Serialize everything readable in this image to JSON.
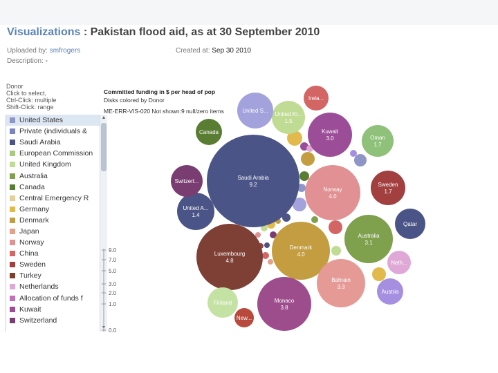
{
  "header": {
    "title_prefix": "Visualizations",
    "title_rest": " : Pakistan flood aid, as at 30 September 2010"
  },
  "meta": {
    "uploaded_label": "Uploaded by:",
    "uploaded_value": "smfrogers",
    "created_label": "Created at:",
    "created_value": "Sep 30 2010",
    "description_label": "Description:",
    "description_value": "-"
  },
  "filter_panel": {
    "title": "Donor",
    "help_lines": [
      "Click to select,",
      "Ctrl-Click: multiple",
      "Shift-Click: range"
    ],
    "items": [
      {
        "label": "United States",
        "color": "#8e96c8"
      },
      {
        "label": "Private (individuals &",
        "color": "#7b83c0"
      },
      {
        "label": "Saudi Arabia",
        "color": "#4b5487"
      },
      {
        "label": "European Commission",
        "color": "#a9cb7f"
      },
      {
        "label": "United Kingdom",
        "color": "#c0db93"
      },
      {
        "label": "Australia",
        "color": "#7fa04d"
      },
      {
        "label": "Canada",
        "color": "#5a7d34"
      },
      {
        "label": "Central Emergency R",
        "color": "#e4cf98"
      },
      {
        "label": "Germany",
        "color": "#e2b94c"
      },
      {
        "label": "Denmark",
        "color": "#c39d3f"
      },
      {
        "label": "Japan",
        "color": "#e3a188"
      },
      {
        "label": "Norway",
        "color": "#e19193"
      },
      {
        "label": "China",
        "color": "#d46565"
      },
      {
        "label": "Sweden",
        "color": "#a24040"
      },
      {
        "label": "Turkey",
        "color": "#7e3f2d"
      },
      {
        "label": "Netherlands",
        "color": "#e0a8d6"
      },
      {
        "label": "Allocation of funds f",
        "color": "#c270b8"
      },
      {
        "label": "Kuwait",
        "color": "#9b4e97"
      },
      {
        "label": "Switzerland",
        "color": "#7a3d72"
      }
    ]
  },
  "chart_info": {
    "title": "Committed funding in $ per head of pop",
    "subtitle": "Disks colored by Donor",
    "note": "ME-ERR-VIS-020 Not shown:9 null/zero items"
  },
  "legend_scale": {
    "ticks": [
      "9.0",
      "7.0",
      "5.0",
      "3.0",
      "2.0",
      "1.0",
      "0.0"
    ]
  },
  "chart_data": {
    "type": "bubble",
    "title": "Committed funding in $ per head of pop",
    "size_scale_ticks": [
      9.0,
      7.0,
      5.0,
      3.0,
      2.0,
      1.0,
      0.0
    ],
    "bubbles": [
      {
        "label": "Saudi Arabia",
        "value": 9.2,
        "color": "#4b5487",
        "text": "Saudi Arabia\n9.2"
      },
      {
        "label": "Luxembourg",
        "value": 4.8,
        "color": "#7e3f35",
        "text": "Luxembourg\n4.8"
      },
      {
        "label": "Denmark",
        "value": 4.0,
        "color": "#c39d3f",
        "text": "Denmark\n4.0"
      },
      {
        "label": "Norway",
        "value": 4.0,
        "color": "#e19193",
        "text": "Norway\n4.0"
      },
      {
        "label": "Monaco",
        "value": 3.8,
        "color": "#9d4c8c",
        "text": "Monaco\n3.8"
      },
      {
        "label": "Bahrain",
        "value": 3.3,
        "color": "#e69a96",
        "text": "Bahrain\n3.3"
      },
      {
        "label": "Australia",
        "value": 3.1,
        "color": "#7fa04d",
        "text": "Australia\n3.1"
      },
      {
        "label": "Kuwait",
        "value": 3.0,
        "color": "#9b4e97",
        "text": "Kuwait\n3.0"
      },
      {
        "label": "Oman",
        "value": 1.7,
        "color": "#8fc17a",
        "text": "Oman\n1.7"
      },
      {
        "label": "Sweden",
        "value": 1.7,
        "color": "#a24040",
        "text": "Sweden\n1.7"
      },
      {
        "label": "United Kingdom",
        "value": 1.5,
        "color": "#c0db93",
        "text": "United Ki...\n1.5"
      },
      {
        "label": "United Arab Emirates",
        "value": 1.4,
        "color": "#4b5487",
        "text": "United A...\n1.4"
      },
      {
        "label": "United States",
        "value": null,
        "color": "#a3a2dc",
        "text": "United S..."
      },
      {
        "label": "Switzerland",
        "value": null,
        "color": "#7a3d72",
        "text": "Switzerl..."
      },
      {
        "label": "Canada",
        "value": null,
        "color": "#5a7d34",
        "text": "Canada"
      },
      {
        "label": "Ireland",
        "value": null,
        "color": "#d46565",
        "text": "Irela..."
      },
      {
        "label": "Qatar",
        "value": null,
        "color": "#4b5487",
        "text": "Qatar"
      },
      {
        "label": "Netherlands",
        "value": null,
        "color": "#e0a8d6",
        "text": "Neth..."
      },
      {
        "label": "Austria",
        "value": null,
        "color": "#a58fe0",
        "text": "Austria"
      },
      {
        "label": "Finland",
        "value": null,
        "color": "#c4e2a3",
        "text": "Finland"
      },
      {
        "label": "New Zealand",
        "value": null,
        "color": "#b84a3d",
        "text": "New..."
      }
    ]
  }
}
